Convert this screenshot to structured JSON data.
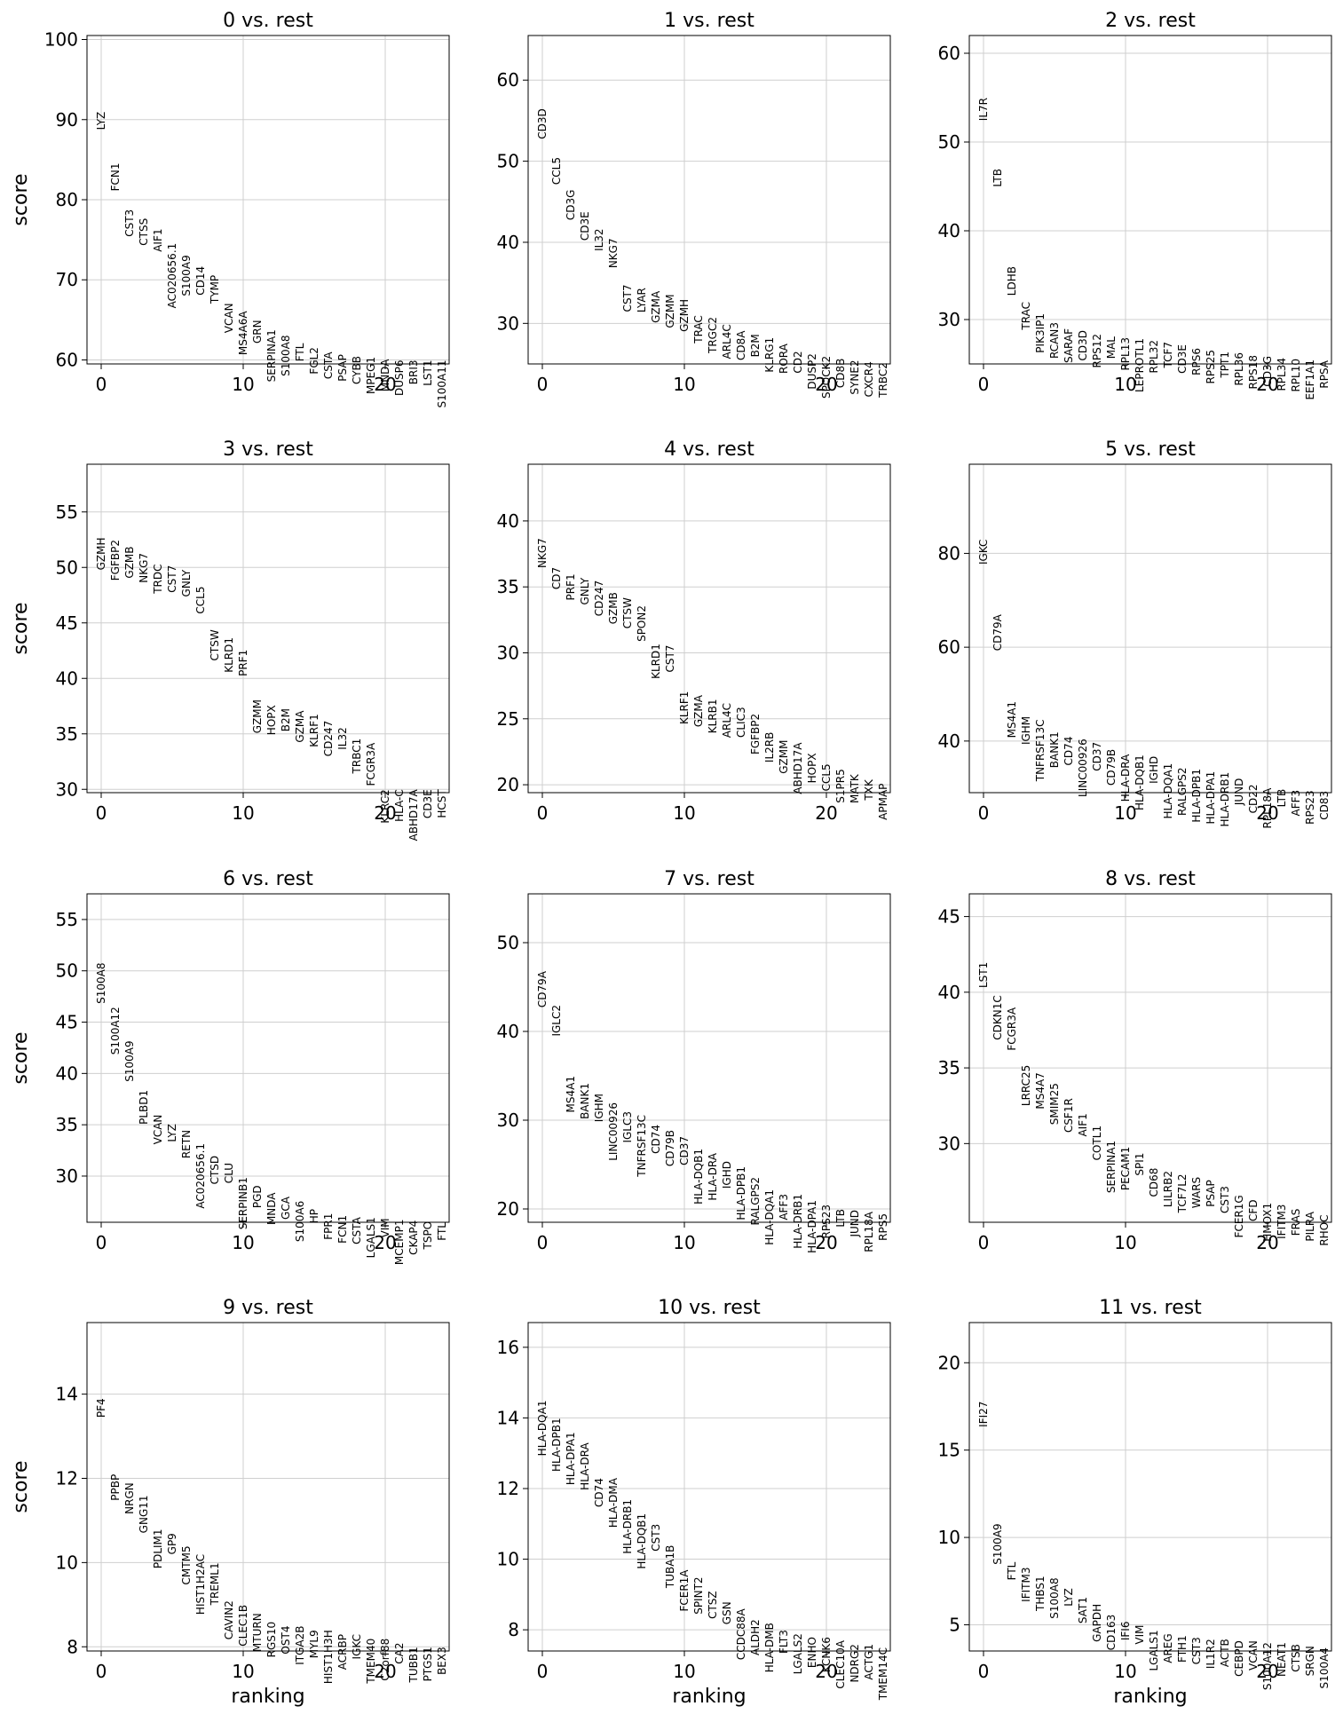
{
  "chart_data": {
    "type": "scatter",
    "layout": "grid 4x3",
    "xlabel": "ranking",
    "ylabel": "score",
    "xlim": [
      -1,
      24.5
    ],
    "xticks": [
      0,
      10,
      20
    ],
    "grid": true,
    "panels": [
      {
        "title": "0 vs. rest",
        "ylim": [
          59.5,
          100.5
        ],
        "yticks": [
          60,
          70,
          80,
          90,
          100
        ],
        "genes": [
          "LYZ",
          "FCN1",
          "CST3",
          "CTSS",
          "AIF1",
          "AC020656.1",
          "S100A9",
          "CD14",
          "TYMP",
          "VCAN",
          "MS4A6A",
          "GRN",
          "SERPINA1",
          "S100A8",
          "FTL",
          "FGL2",
          "CSTA",
          "PSAP",
          "CYBB",
          "MPEG1",
          "MNDA",
          "DUSP6",
          "BRI3",
          "LST1",
          "S100A11"
        ],
        "scores": [
          91.0,
          84.6,
          78.8,
          77.7,
          76.4,
          74.6,
          73.1,
          71.7,
          70.6,
          67.1,
          66.1,
          65.0,
          63.8,
          63.1,
          62.1,
          61.6,
          61.0,
          60.7,
          60.5,
          60.4,
          60.1,
          60.0,
          60.0,
          60.0,
          60.0
        ]
      },
      {
        "title": "1 vs. rest",
        "ylim": [
          25,
          65.5
        ],
        "yticks": [
          30,
          40,
          50,
          60
        ],
        "genes": [
          "CD3D",
          "CCL5",
          "CD3G",
          "CD3E",
          "IL32",
          "NKG7",
          "CST7",
          "LYAR",
          "GZMA",
          "GZMM",
          "GZMH",
          "TRAC",
          "TRGC2",
          "ARL4C",
          "CD8A",
          "B2M",
          "KLRG1",
          "RORA",
          "CD2",
          "DUSP2",
          "SPOCK2",
          "CD8B",
          "SYNE2",
          "CXCR4",
          "TRBC2"
        ],
        "scores": [
          56.5,
          50.5,
          46.5,
          43.8,
          41.7,
          40.5,
          34.8,
          34.4,
          34.0,
          33.6,
          33.0,
          31.0,
          30.8,
          29.9,
          29.1,
          28.7,
          28.3,
          27.5,
          26.6,
          26.3,
          26.0,
          25.7,
          25.5,
          25.3,
          25.2
        ]
      },
      {
        "title": "2 vs. rest",
        "ylim": [
          25,
          62
        ],
        "yticks": [
          30,
          40,
          50,
          60
        ],
        "genes": [
          "IL7R",
          "LTB",
          "LDHB",
          "TRAC",
          "PIK3IP1",
          "RCAN3",
          "SARAF",
          "CD3D",
          "RPS12",
          "MAL",
          "RPL13",
          "LEPROTL1",
          "RPL32",
          "TCF7",
          "CD3E",
          "RPS6",
          "RPS25",
          "TPT1",
          "RPL36",
          "RPS18",
          "CD3G",
          "RPL34",
          "RPL10",
          "EEF1A1",
          "RPSA"
        ],
        "scores": [
          55.0,
          47.0,
          36.0,
          32.0,
          30.7,
          29.7,
          29.0,
          28.8,
          28.4,
          28.1,
          28.0,
          27.9,
          27.7,
          27.5,
          27.2,
          26.8,
          26.6,
          26.4,
          26.3,
          26.0,
          25.9,
          25.7,
          25.6,
          25.5,
          25.4
        ]
      },
      {
        "title": "3 vs. rest",
        "ylim": [
          29.7,
          59.3
        ],
        "yticks": [
          30,
          35,
          40,
          45,
          50,
          55
        ],
        "genes": [
          "GZMH",
          "FGFBP2",
          "GZMB",
          "NKG7",
          "TRDC",
          "CST7",
          "GNLY",
          "CCL5",
          "CTSW",
          "KLRD1",
          "PRF1",
          "GZMM",
          "HOPX",
          "B2M",
          "GZMA",
          "KLRF1",
          "CD247",
          "IL32",
          "TRBC1",
          "FCGR3A",
          "KLRC2",
          "HLA-C",
          "ABHD17A",
          "CD3E",
          "HCST"
        ],
        "scores": [
          52.7,
          52.5,
          51.9,
          51.3,
          50.3,
          50.2,
          49.8,
          48.3,
          44.4,
          43.7,
          42.6,
          38.1,
          37.6,
          37.3,
          37.1,
          36.8,
          36.2,
          35.6,
          34.6,
          34.2,
          30.0,
          30.0,
          30.0,
          30.0,
          30.0
        ]
      },
      {
        "title": "4 vs. rest",
        "ylim": [
          19.4,
          44.3
        ],
        "yticks": [
          20,
          25,
          30,
          35,
          40
        ],
        "genes": [
          "NKG7",
          "CD7",
          "PRF1",
          "GNLY",
          "CD247",
          "GZMB",
          "CTSW",
          "SPON2",
          "KLRD1",
          "CST7",
          "KLRF1",
          "GZMA",
          "KLRB1",
          "ARL4C",
          "CLIC3",
          "FGFBP2",
          "IL2RB",
          "GZMM",
          "ABHD17A",
          "HOPX",
          "CCL5",
          "S1PR5",
          "MATK",
          "TXK",
          "APMAP"
        ],
        "scores": [
          38.7,
          36.5,
          36.0,
          35.7,
          35.5,
          34.6,
          34.2,
          33.6,
          30.7,
          30.6,
          27.1,
          26.8,
          26.5,
          26.2,
          25.9,
          25.4,
          24.0,
          23.4,
          23.2,
          22.4,
          21.6,
          21.2,
          20.8,
          20.4,
          20.1
        ]
      },
      {
        "title": "5 vs. rest",
        "ylim": [
          29,
          99
        ],
        "yticks": [
          40,
          60,
          80
        ],
        "genes": [
          "IGKC",
          "CD79A",
          "MS4A1",
          "IGHM",
          "TNFRSF13C",
          "BANK1",
          "CD74",
          "LINC00926",
          "CD37",
          "CD79B",
          "HLA-DRA",
          "HLA-DQB1",
          "IGHD",
          "HLA-DQA1",
          "RALGPS2",
          "HLA-DPB1",
          "HLA-DPA1",
          "HLA-DRB1",
          "JUND",
          "CD22",
          "RPL18A",
          "LTB",
          "AFF3",
          "RPS23",
          "CD83"
        ],
        "scores": [
          83.0,
          67.0,
          48.5,
          45.3,
          44.6,
          42.0,
          41.0,
          40.5,
          39.8,
          38.3,
          37.2,
          37.1,
          36.8,
          35.3,
          34.4,
          34.1,
          33.6,
          33.4,
          32.1,
          30.8,
          30.0,
          29.8,
          29.6,
          29.5,
          29.4
        ]
      },
      {
        "title": "6 vs. rest",
        "ylim": [
          25.5,
          57.5
        ],
        "yticks": [
          30,
          35,
          40,
          45,
          50,
          55
        ],
        "genes": [
          "S100A8",
          "S100A12",
          "S100A9",
          "PLBD1",
          "VCAN",
          "LYZ",
          "RETN",
          "AC020656.1",
          "CTSD",
          "CLU",
          "SERPINB1",
          "PGD",
          "MNDA",
          "GCA",
          "S100A6",
          "HP",
          "FPR1",
          "FCN1",
          "CSTA",
          "LGALS1",
          "VIM",
          "MCEMP1",
          "CKAP4",
          "TSPO",
          "FTL"
        ],
        "scores": [
          50.8,
          46.5,
          43.2,
          38.4,
          36.0,
          35.1,
          34.5,
          33.2,
          32.0,
          31.3,
          29.9,
          29.1,
          28.4,
          28.0,
          27.6,
          26.8,
          26.4,
          26.2,
          26.0,
          26.0,
          25.9,
          25.8,
          25.7,
          25.6,
          25.5
        ]
      },
      {
        "title": "7 vs. rest",
        "ylim": [
          18.5,
          55.5
        ],
        "yticks": [
          20,
          30,
          40,
          50
        ],
        "genes": [
          "CD79A",
          "IGLC2",
          "MS4A1",
          "BANK1",
          "IGHM",
          "LINC00926",
          "IGLC3",
          "TNFRSF13C",
          "CD74",
          "CD79B",
          "CD37",
          "HLA-DQB1",
          "HLA-DRA",
          "IGHD",
          "HLA-DPB1",
          "RALGPS2",
          "HLA-DQA1",
          "AFF3",
          "HLA-DRB1",
          "HLA-DPA1",
          "RPS23",
          "LTB",
          "JUND",
          "RPL18A",
          "RPS5"
        ],
        "scores": [
          46.8,
          43.0,
          35.0,
          34.2,
          33.0,
          32.0,
          31.0,
          30.6,
          29.5,
          28.9,
          28.2,
          26.8,
          26.3,
          25.4,
          24.8,
          23.6,
          22.2,
          21.7,
          21.7,
          21.0,
          20.5,
          20.0,
          19.9,
          19.7,
          19.5
        ]
      },
      {
        "title": "8 vs. rest",
        "ylim": [
          24.8,
          46.5
        ],
        "yticks": [
          30,
          35,
          40,
          45
        ],
        "genes": [
          "LST1",
          "CDKN1C",
          "FCGR3A",
          "LRRC25",
          "MS4A7",
          "SMIM25",
          "CSF1R",
          "AIF1",
          "COTL1",
          "SERPINA1",
          "PECAM1",
          "SPI1",
          "CD68",
          "LILRB2",
          "TCF7L2",
          "WARS",
          "PSAP",
          "CST3",
          "FCER1G",
          "CFD",
          "HMOX1",
          "IFITM3",
          "FRAS",
          "PILRA",
          "RHOC"
        ],
        "scores": [
          42.0,
          39.8,
          39.0,
          35.2,
          34.7,
          34.0,
          33.0,
          32.0,
          31.2,
          30.2,
          29.8,
          29.4,
          28.4,
          28.2,
          28.0,
          27.8,
          27.6,
          27.2,
          26.6,
          26.3,
          26.1,
          26.0,
          25.7,
          25.5,
          25.3
        ]
      },
      {
        "title": "9 vs. rest",
        "ylim": [
          7.9,
          15.7
        ],
        "yticks": [
          8,
          10,
          12,
          14
        ],
        "genes": [
          "PF4",
          "PPBP",
          "NRGN",
          "GNG11",
          "PDLIM1",
          "GP9",
          "CMTM5",
          "HIST1H2AC",
          "TREML1",
          "CAVIN2",
          "CLEC1B",
          "MTURN",
          "RGS10",
          "OST4",
          "ITGA2B",
          "MYL9",
          "HIST1H3H",
          "ACRBP",
          "IGKC",
          "TMEM40",
          "C2orf88",
          "CA2",
          "TUBB1",
          "PTGS1",
          "BEX3"
        ],
        "scores": [
          13.9,
          12.1,
          11.9,
          11.6,
          10.8,
          10.7,
          10.4,
          10.2,
          10.0,
          9.1,
          9.0,
          8.8,
          8.6,
          8.5,
          8.5,
          8.4,
          8.4,
          8.3,
          8.3,
          8.2,
          8.2,
          8.1,
          8.0,
          8.0,
          8.0
        ]
      },
      {
        "title": "10 vs. rest",
        "ylim": [
          7.4,
          16.7
        ],
        "yticks": [
          8,
          10,
          12,
          14,
          16
        ],
        "genes": [
          "HLA-DQA1",
          "HLA-DPB1",
          "HLA-DPA1",
          "HLA-DRA",
          "CD74",
          "HLA-DMA",
          "HLA-DRB1",
          "HLA-DQB1",
          "CST3",
          "TUBA1B",
          "FCER1A",
          "SPINT2",
          "CTSZ",
          "GSN",
          "CCDC88A",
          "ALDH2",
          "HLA-DMB",
          "FLT3",
          "LGALS2",
          "ENHO",
          "KCNK6",
          "CLEC10A",
          "NDRG2",
          "ACTG1",
          "TMEM14C"
        ],
        "scores": [
          14.5,
          14.0,
          13.6,
          13.3,
          12.3,
          12.3,
          11.7,
          11.3,
          11.0,
          10.4,
          9.7,
          9.5,
          9.1,
          8.8,
          8.6,
          8.3,
          8.2,
          8.0,
          7.9,
          7.8,
          7.8,
          7.7,
          7.6,
          7.6,
          7.5
        ]
      },
      {
        "title": "11 vs. rest",
        "ylim": [
          3.5,
          22.3
        ],
        "yticks": [
          5,
          10,
          15,
          20
        ],
        "genes": [
          "IFI27",
          "S100A9",
          "FTL",
          "IFITM3",
          "THBS1",
          "S100A8",
          "LYZ",
          "SAT1",
          "GAPDH",
          "CD163",
          "IFI6",
          "VIM",
          "LGALS1",
          "AREG",
          "FTH1",
          "CST3",
          "IL1R2",
          "ACTB",
          "CEBPD",
          "VCAN",
          "S100A12",
          "NEAT1",
          "CTSB",
          "SRGN",
          "S100A4"
        ],
        "scores": [
          17.8,
          10.8,
          8.6,
          8.3,
          7.8,
          7.7,
          7.1,
          6.6,
          6.2,
          5.6,
          5.2,
          5.0,
          4.7,
          4.5,
          4.4,
          4.3,
          4.2,
          4.2,
          4.1,
          4.1,
          4.0,
          4.0,
          3.9,
          3.8,
          3.7
        ]
      }
    ]
  }
}
